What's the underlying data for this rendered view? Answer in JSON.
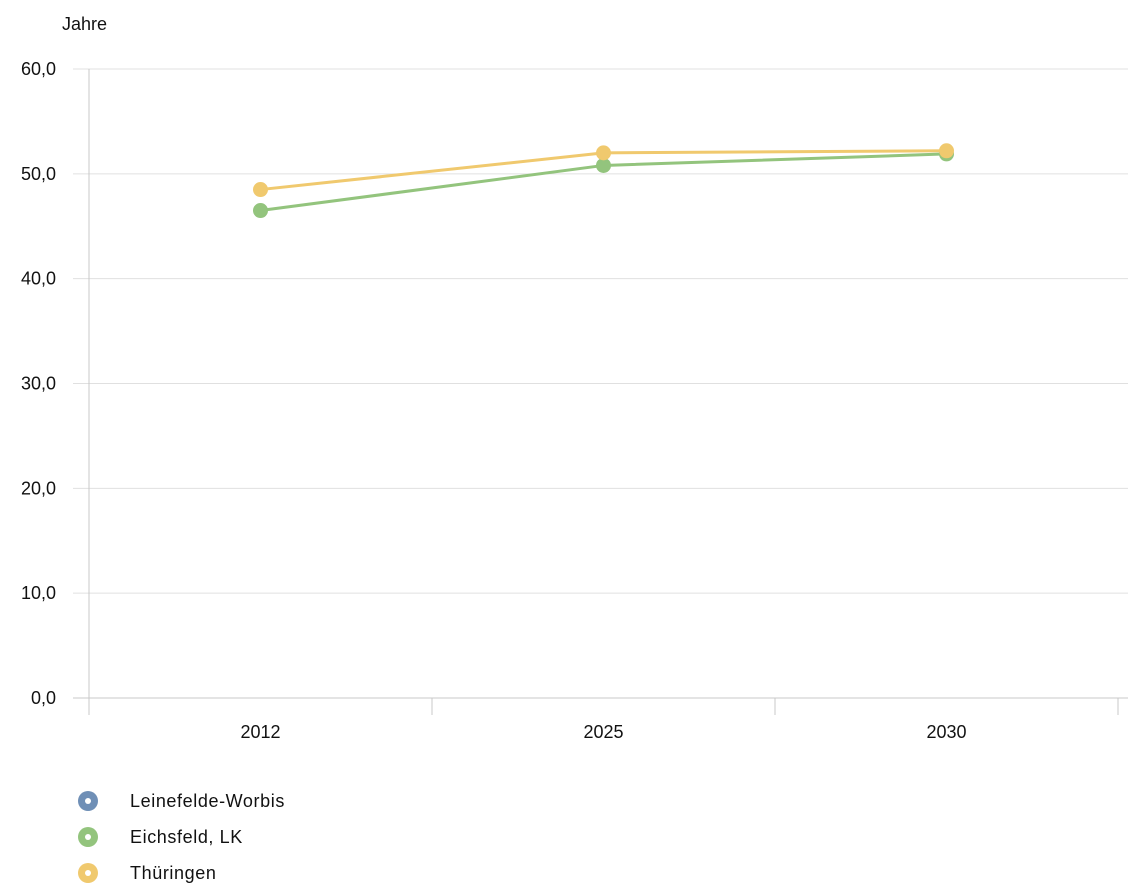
{
  "chart_data": {
    "type": "line",
    "ylabel": "Jahre",
    "xlabel": "",
    "categories": [
      "2012",
      "2025",
      "2030"
    ],
    "ylim": [
      0,
      60
    ],
    "yticks": [
      "0,0",
      "10,0",
      "20,0",
      "30,0",
      "40,0",
      "50,0",
      "60,0"
    ],
    "grid": true,
    "legend_position": "bottom-left",
    "series": [
      {
        "name": "Leinefelde-Worbis",
        "color": "#6f8fb6",
        "values": [
          null,
          null,
          null
        ]
      },
      {
        "name": "Eichsfeld, LK",
        "color": "#93c47d",
        "values": [
          46.5,
          50.8,
          51.9
        ]
      },
      {
        "name": "Thüringen",
        "color": "#f0c96e",
        "values": [
          48.5,
          52.0,
          52.2
        ]
      }
    ]
  }
}
